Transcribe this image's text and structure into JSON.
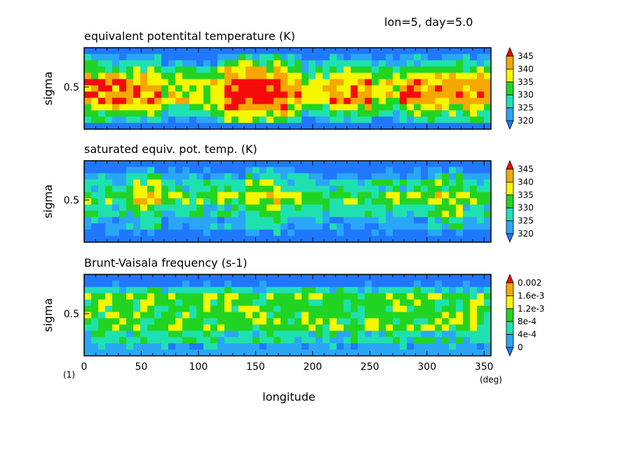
{
  "header": "lon=5, day=5.0",
  "footnote": "(1)",
  "colors": {
    "blue": "#1f78ff",
    "dodger": "#2aa6f7",
    "cyan": "#1fe1b0",
    "green": "#22d422",
    "yellow": "#f6f600",
    "orange": "#f5a800",
    "red": "#f50a0a"
  },
  "chart_data": [
    {
      "type": "heatmap",
      "title": "equivalent potentital temperature (K)",
      "ylabel": "sigma",
      "yticks": [
        "0.5"
      ],
      "xlabel": "",
      "legend": {
        "levels": [
          "345",
          "340",
          "335",
          "330",
          "325",
          "320"
        ],
        "colors": [
          "#f50a0a",
          "#f5a800",
          "#f6f600",
          "#22d422",
          "#1fe1b0",
          "#2aa6f7",
          "#1f78ff"
        ]
      },
      "profile": [
        6,
        5,
        4,
        3,
        2,
        1,
        1,
        1,
        1,
        2,
        3,
        4,
        6
      ],
      "regions": [
        {
          "x_range": [
            70,
            115
          ],
          "shift": 1
        },
        {
          "x_range": [
            190,
            215
          ],
          "shift": 1
        },
        {
          "x_range": [
            250,
            275
          ],
          "shift": 1
        },
        {
          "x_range": [
            120,
            180
          ],
          "shift": -1
        }
      ]
    },
    {
      "type": "heatmap",
      "title": "saturated equiv. pot. temp. (K)",
      "ylabel": "sigma",
      "yticks": [
        "0.5"
      ],
      "xlabel": "",
      "legend": {
        "levels": [
          "345",
          "340",
          "335",
          "330",
          "325",
          "320"
        ],
        "colors": [
          "#f50a0a",
          "#f5a800",
          "#f6f600",
          "#22d422",
          "#1fe1b0",
          "#2aa6f7",
          "#1f78ff"
        ]
      },
      "profile": [
        6,
        6,
        5,
        4,
        4,
        3,
        3,
        4,
        4,
        5,
        5,
        6,
        6
      ],
      "regions": [
        {
          "x_range": [
            40,
            70
          ],
          "shift": -1
        },
        {
          "x_range": [
            140,
            170
          ],
          "shift": -1
        },
        {
          "x_range": [
            300,
            330
          ],
          "shift": -1
        }
      ]
    },
    {
      "type": "heatmap",
      "title": "Brunt-Vaisala frequency (s-1)",
      "ylabel": "sigma",
      "yticks": [
        "0.5"
      ],
      "xlabel": "longitude",
      "x_unit": "(deg)",
      "xticks": [
        "0",
        "50",
        "100",
        "150",
        "200",
        "250",
        "300",
        "350"
      ],
      "xlim": [
        0,
        356
      ],
      "legend": {
        "levels": [
          "0.002",
          "1.6e-3",
          "1.2e-3",
          "8e-4",
          "4e-4",
          "0"
        ],
        "colors": [
          "#f50a0a",
          "#f5a800",
          "#f6f600",
          "#22d422",
          "#1fe1b0",
          "#2aa6f7",
          "#1f78ff"
        ]
      },
      "profile": [
        6,
        6,
        4,
        3,
        3,
        3,
        3,
        3,
        3,
        4,
        4,
        5,
        5
      ],
      "regions": []
    }
  ]
}
